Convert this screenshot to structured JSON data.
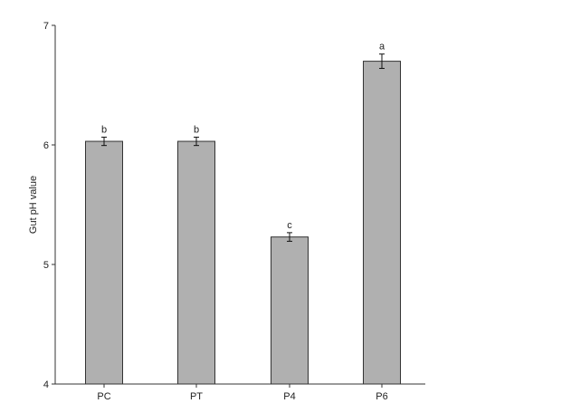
{
  "chart_data": {
    "type": "bar",
    "title": "",
    "xlabel": "",
    "ylabel": "Gut pH value",
    "ylim": [
      4,
      7
    ],
    "yticks": [
      4,
      5,
      6,
      7
    ],
    "categories": [
      "PC",
      "PT",
      "P4",
      "P6"
    ],
    "values": [
      6.03,
      6.03,
      5.23,
      6.7
    ],
    "errors": [
      0.035,
      0.035,
      0.036,
      0.06
    ],
    "significance_letters": [
      "b",
      "b",
      "c",
      "a"
    ],
    "grid": false,
    "bar_color": "#b0b0b0",
    "edge_color": "#333333"
  }
}
